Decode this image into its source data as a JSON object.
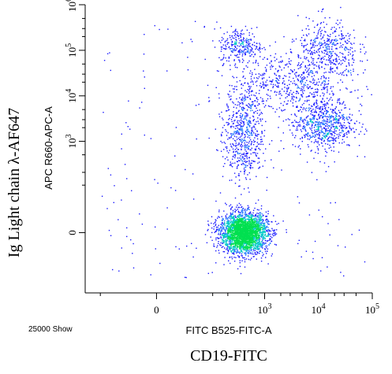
{
  "chart_data": {
    "type": "scatter",
    "title": "",
    "footer_note": "25000 Show",
    "xlabel": "FITC B525-FITC-A",
    "ylabel": "APC R660-APC-A",
    "outer_xlabel": "CD19-FITC",
    "outer_ylabel": "Ig Light chain λ-AF647",
    "x_scale": "biexponential",
    "y_scale": "biexponential",
    "xlim": [
      -200,
      100000
    ],
    "ylim": [
      -200,
      1000000
    ],
    "x_ticks": [
      {
        "value": 0,
        "base": "0",
        "exp": ""
      },
      {
        "value": 1000,
        "base": "10",
        "exp": "3"
      },
      {
        "value": 10000,
        "base": "10",
        "exp": "4"
      },
      {
        "value": 100000,
        "base": "10",
        "exp": "5"
      }
    ],
    "y_ticks": [
      {
        "value": 0,
        "base": "0",
        "exp": ""
      },
      {
        "value": 1000,
        "base": "10",
        "exp": "3"
      },
      {
        "value": 10000,
        "base": "10",
        "exp": "4"
      },
      {
        "value": 100000,
        "base": "10",
        "exp": "5"
      },
      {
        "value": 1000000,
        "base": "10",
        "exp": "6"
      }
    ],
    "event_count": 25000,
    "colors": {
      "low_density": "#1a1aff",
      "mid_density": "#00c8c8",
      "high_density": "#00e050",
      "axis": "#000000"
    },
    "populations": [
      {
        "name": "",
        "x_center": 400,
        "y_center": 0,
        "x_spread": 0.22,
        "y_spread": 0.22,
        "share": 0.52
      },
      {
        "name": "",
        "x_center": 400,
        "y_center": 1500,
        "x_spread": 0.18,
        "y_spread": 0.55,
        "share": 0.12
      },
      {
        "name": "",
        "x_center": 350,
        "y_center": 130000,
        "x_spread": 0.2,
        "y_spread": 0.2,
        "share": 0.05
      },
      {
        "name": "",
        "x_center": 12000,
        "y_center": 2500,
        "x_spread": 0.28,
        "y_spread": 0.28,
        "share": 0.13
      },
      {
        "name": "",
        "x_center": 15000,
        "y_center": 100000,
        "x_spread": 0.28,
        "y_spread": 0.35,
        "share": 0.08
      },
      {
        "name": "",
        "x_center": 3000,
        "y_center": 20000,
        "x_spread": 0.55,
        "y_spread": 0.35,
        "share": 0.1
      }
    ]
  }
}
